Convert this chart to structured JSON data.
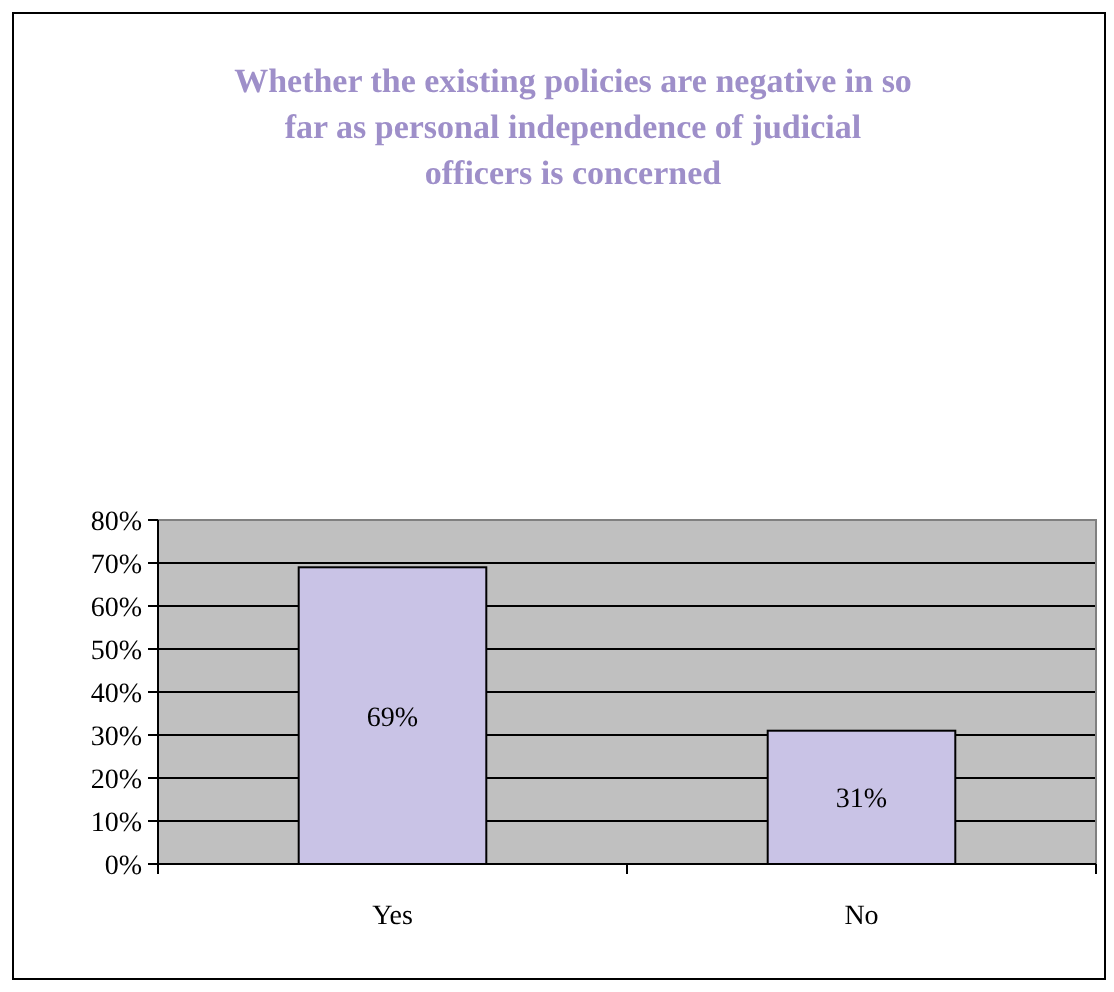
{
  "chart_data": {
    "type": "bar",
    "title": "Whether the existing policies are negative in so far as personal independence of judicial officers is concerned",
    "categories": [
      "Yes",
      "No"
    ],
    "values": [
      69,
      31
    ],
    "color": "#c9c3e6",
    "ylim": [
      0,
      80
    ],
    "yticks": [
      {
        "value": 0,
        "label": "0%"
      },
      {
        "value": 10,
        "label": "10%"
      },
      {
        "value": 20,
        "label": "20%"
      },
      {
        "value": 30,
        "label": "30%"
      },
      {
        "value": 40,
        "label": "40%"
      },
      {
        "value": 50,
        "label": "50%"
      },
      {
        "value": 60,
        "label": "60%"
      },
      {
        "value": 70,
        "label": "70%"
      },
      {
        "value": 80,
        "label": "80%"
      }
    ],
    "value_labels": [
      "69%",
      "31%"
    ],
    "grid": "y"
  }
}
